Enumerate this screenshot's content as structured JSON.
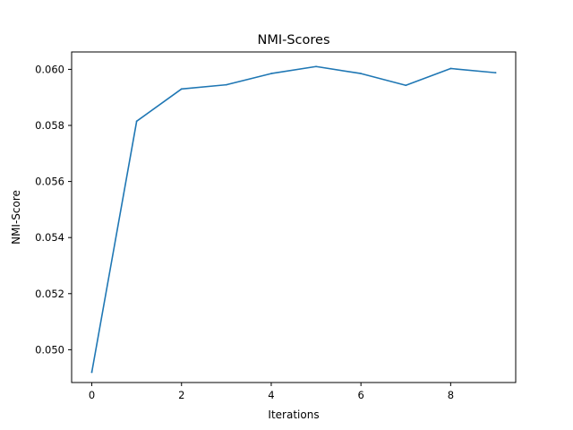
{
  "chart_data": {
    "type": "line",
    "title": "NMI-Scores",
    "xlabel": "Iterations",
    "ylabel": "NMI-Score",
    "x": [
      0,
      1,
      2,
      3,
      4,
      5,
      6,
      7,
      8,
      9
    ],
    "series": [
      {
        "values": [
          0.0492,
          0.05815,
          0.0593,
          0.05945,
          0.05985,
          0.0601,
          0.05985,
          0.05943,
          0.06003,
          0.05988
        ],
        "color": "#1f77b4"
      }
    ],
    "xlim": [
      -0.45,
      9.45
    ],
    "ylim": [
      0.04883,
      0.06062
    ],
    "xticks": [
      0,
      2,
      4,
      6,
      8
    ],
    "xtick_labels": [
      "0",
      "2",
      "4",
      "6",
      "8"
    ],
    "yticks": [
      0.05,
      0.052,
      0.054,
      0.056,
      0.058,
      0.06
    ],
    "ytick_labels": [
      "0.050",
      "0.052",
      "0.054",
      "0.056",
      "0.058",
      "0.060"
    ],
    "grid": false,
    "legend": "none"
  }
}
